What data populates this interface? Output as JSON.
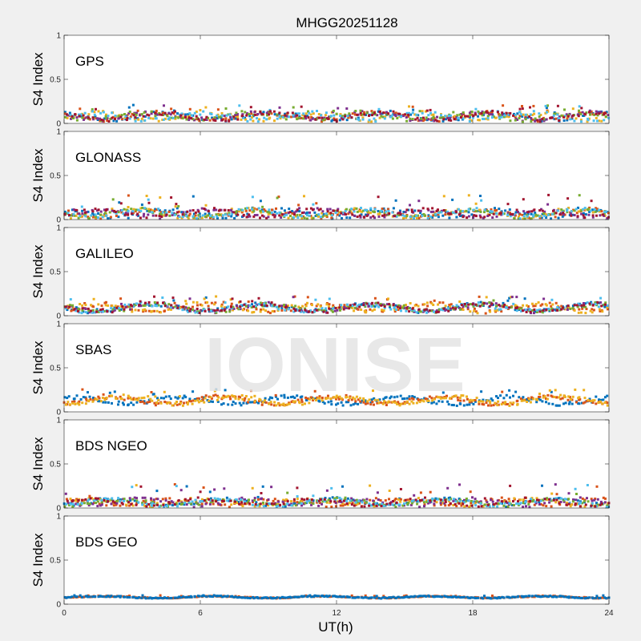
{
  "figure": {
    "title": "MHGG20251128",
    "xlabel": "UT(h)",
    "watermark": "IONISE",
    "background": "#f0f0f0",
    "axes_background": "#ffffff",
    "watermark_color": "#e3e3e3"
  },
  "chart_data": [
    {
      "type": "scatter",
      "panel_label": "GPS",
      "ylabel": "S4 Index",
      "xlim": [
        0,
        24
      ],
      "ylim": [
        0,
        1
      ],
      "xticks": [
        0,
        6,
        12,
        18,
        24
      ],
      "yticks": [
        0,
        0.5,
        1
      ],
      "xtick_labels": [
        "0",
        "6",
        "12",
        "18",
        "24"
      ],
      "ytick_labels": [
        "0",
        "0.5",
        "1"
      ],
      "grid": false,
      "series_colors": [
        "#0072bd",
        "#d95319",
        "#edb120",
        "#7e2f8e",
        "#77ac30",
        "#4dbeee",
        "#a2142f"
      ],
      "points_per_series": 130,
      "base_s4_range": [
        0.04,
        0.12
      ],
      "s4_max": 0.21
    },
    {
      "type": "scatter",
      "panel_label": "GLONASS",
      "ylabel": "S4 Index",
      "xlim": [
        0,
        24
      ],
      "ylim": [
        0,
        1
      ],
      "xticks": [
        0,
        6,
        12,
        18,
        24
      ],
      "yticks": [
        0,
        0.5,
        1
      ],
      "xtick_labels": [
        "0",
        "6",
        "12",
        "18",
        "24"
      ],
      "ytick_labels": [
        "0",
        "0.5",
        "1"
      ],
      "grid": false,
      "series_colors": [
        "#0072bd",
        "#d95319",
        "#edb120",
        "#7e2f8e",
        "#77ac30",
        "#4dbeee",
        "#a2142f"
      ],
      "points_per_series": 130,
      "base_s4_range": [
        0.03,
        0.11
      ],
      "s4_max": 0.28
    },
    {
      "type": "scatter",
      "panel_label": "GALILEO",
      "ylabel": "S4 Index",
      "xlim": [
        0,
        24
      ],
      "ylim": [
        0,
        1
      ],
      "xticks": [
        0,
        6,
        12,
        18,
        24
      ],
      "yticks": [
        0,
        0.5,
        1
      ],
      "xtick_labels": [
        "0",
        "6",
        "12",
        "18",
        "24"
      ],
      "ytick_labels": [
        "0",
        "0.5",
        "1"
      ],
      "grid": false,
      "series_colors": [
        "#0072bd",
        "#d95319",
        "#edb120",
        "#7e2f8e",
        "#77ac30",
        "#4dbeee",
        "#a2142f"
      ],
      "points_per_series": 130,
      "base_s4_range": [
        0.05,
        0.13
      ],
      "s4_max": 0.22
    },
    {
      "type": "scatter",
      "panel_label": "SBAS",
      "ylabel": "S4 Index",
      "xlim": [
        0,
        24
      ],
      "ylim": [
        0,
        1
      ],
      "xticks": [
        0,
        6,
        12,
        18,
        24
      ],
      "yticks": [
        0,
        0.5,
        1
      ],
      "xtick_labels": [
        "0",
        "6",
        "12",
        "18",
        "24"
      ],
      "ytick_labels": [
        "0",
        "0.5",
        "1"
      ],
      "grid": false,
      "series_colors": [
        "#0072bd",
        "#d95319",
        "#edb120"
      ],
      "points_per_series": 220,
      "base_s4_range": [
        0.09,
        0.17
      ],
      "s4_max": 0.26
    },
    {
      "type": "scatter",
      "panel_label": "BDS NGEO",
      "ylabel": "S4 Index",
      "xlim": [
        0,
        24
      ],
      "ylim": [
        0,
        1
      ],
      "xticks": [
        0,
        6,
        12,
        18,
        24
      ],
      "yticks": [
        0,
        0.5,
        1
      ],
      "xtick_labels": [
        "0",
        "6",
        "12",
        "18",
        "24"
      ],
      "ytick_labels": [
        "0",
        "0.5",
        "1"
      ],
      "grid": false,
      "series_colors": [
        "#0072bd",
        "#d95319",
        "#edb120",
        "#7e2f8e",
        "#77ac30",
        "#4dbeee",
        "#a2142f"
      ],
      "points_per_series": 130,
      "base_s4_range": [
        0.03,
        0.1
      ],
      "s4_max": 0.27
    },
    {
      "type": "scatter",
      "panel_label": "BDS GEO",
      "ylabel": "S4 Index",
      "xlim": [
        0,
        24
      ],
      "ylim": [
        0,
        1
      ],
      "xticks": [
        0,
        6,
        12,
        18,
        24
      ],
      "yticks": [
        0,
        0.5,
        1
      ],
      "xtick_labels": [
        "0",
        "6",
        "12",
        "18",
        "24"
      ],
      "ytick_labels": [
        "0",
        "0.5",
        "1"
      ],
      "grid": false,
      "series_colors": [
        "#d95319",
        "#0072bd"
      ],
      "points_per_series": 300,
      "base_s4_range": [
        0.07,
        0.09
      ],
      "s4_max": 0.1
    }
  ]
}
